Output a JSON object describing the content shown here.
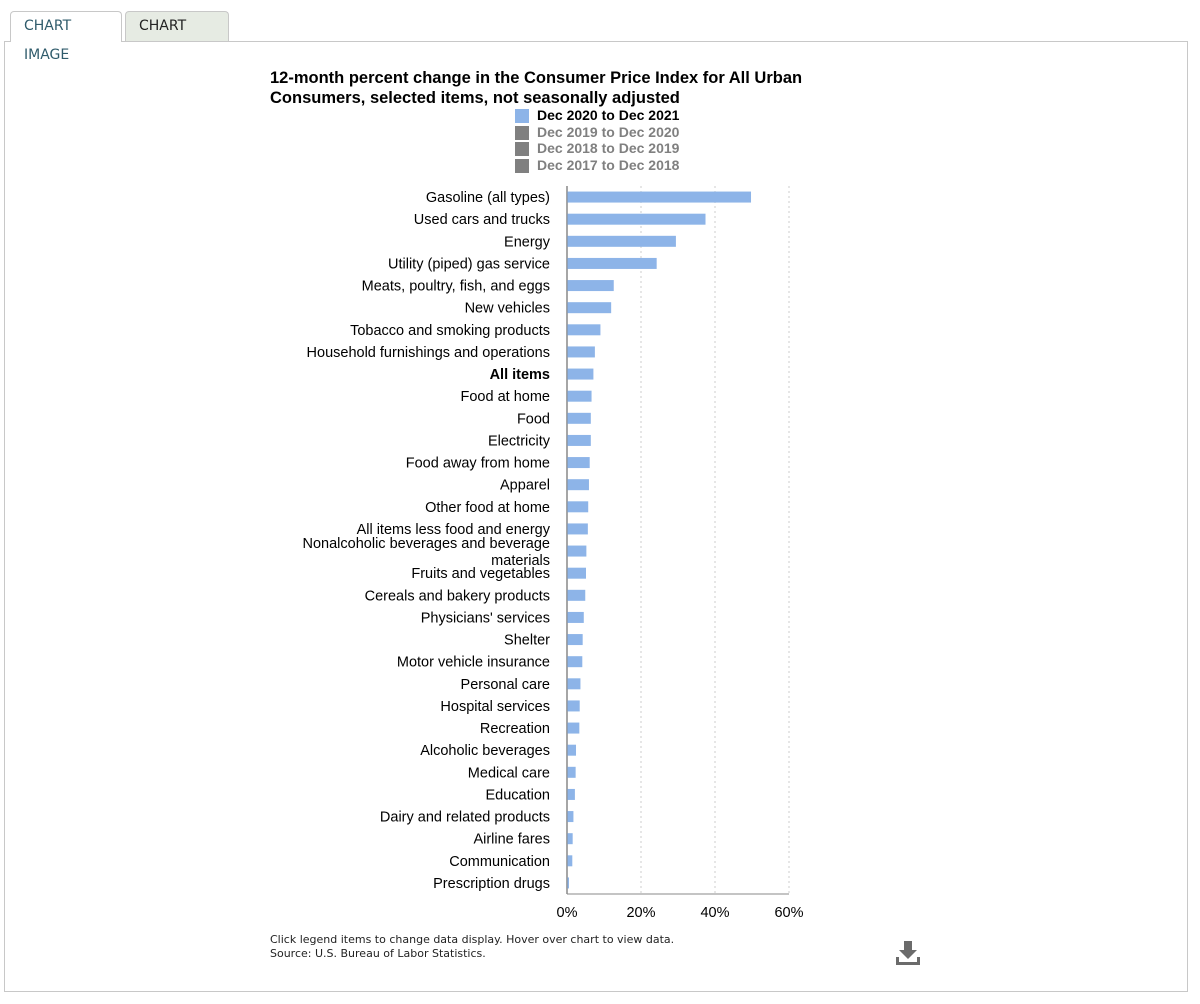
{
  "tabs": {
    "chart_image": "CHART IMAGE",
    "chart_data": "CHART DATA"
  },
  "title": "12-month percent change in the Consumer Price Index for All Urban Consumers, selected items, not seasonally adjusted",
  "footnote": {
    "line1": "Click legend items to change data display. Hover over chart to view data.",
    "line2": "Source: U.S. Bureau of Labor Statistics."
  },
  "chart_data": {
    "type": "bar",
    "orientation": "horizontal",
    "title": "12-month percent change in the Consumer Price Index for All Urban Consumers, selected items, not seasonally adjusted",
    "xlim": [
      0,
      60
    ],
    "xticks": [
      "0%",
      "20%",
      "40%",
      "60%"
    ],
    "grid": true,
    "legend_placement": "top",
    "legend": [
      {
        "name": "Dec 2020 to Dec 2021",
        "active": true,
        "color": "#8db4e8"
      },
      {
        "name": "Dec 2019 to Dec 2020",
        "active": false,
        "color": "#808080"
      },
      {
        "name": "Dec 2018 to Dec 2019",
        "active": false,
        "color": "#808080"
      },
      {
        "name": "Dec 2017 to Dec 2018",
        "active": false,
        "color": "#808080"
      }
    ],
    "categories": [
      "Gasoline (all types)",
      "Used cars and trucks",
      "Energy",
      "Utility (piped) gas service",
      "Meats, poultry, fish, and eggs",
      "New vehicles",
      "Tobacco and smoking products",
      "Household furnishings and operations",
      "All items",
      "Food at home",
      "Food",
      "Electricity",
      "Food away from home",
      "Apparel",
      "Other food at home",
      "All items less food and energy",
      "Nonalcoholic beverages and beverage materials",
      "Fruits and vegetables",
      "Cereals and bakery products",
      "Physicians' services",
      "Shelter",
      "Motor vehicle insurance",
      "Personal care",
      "Hospital services",
      "Recreation",
      "Alcoholic beverages",
      "Medical care",
      "Education",
      "Dairy and related products",
      "Airline fares",
      "Communication",
      "Prescription drugs"
    ],
    "bold_categories": [
      "All items"
    ],
    "series": [
      {
        "name": "Dec 2020 to Dec 2021",
        "color": "#8db4e8",
        "values": [
          49.6,
          37.3,
          29.3,
          24.1,
          12.5,
          11.8,
          8.9,
          7.4,
          7.0,
          6.5,
          6.3,
          6.3,
          6.0,
          5.8,
          5.6,
          5.5,
          5.1,
          5.0,
          4.8,
          4.4,
          4.1,
          4.0,
          3.5,
          3.3,
          3.2,
          2.3,
          2.2,
          2.0,
          1.6,
          1.4,
          1.3,
          0.4
        ]
      }
    ]
  },
  "colors": {
    "bar": "#8db4e8",
    "inactive": "#808080",
    "axis": "#888888",
    "grid": "#cccccc"
  },
  "icons": {
    "download": "download-icon"
  }
}
